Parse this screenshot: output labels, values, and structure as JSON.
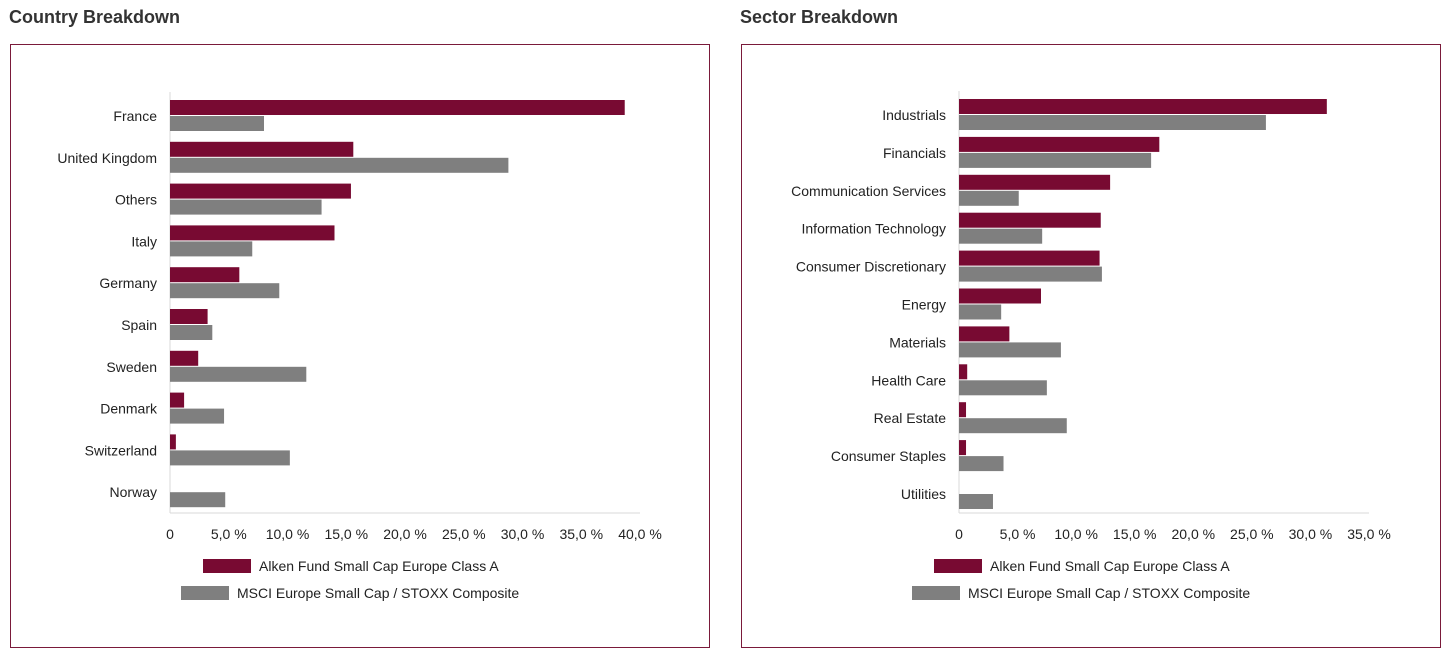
{
  "colors": {
    "fund": "#780a32",
    "benchmark": "#7f7f7f",
    "frame": "#7a1a3a",
    "axis": "#d9d9d9"
  },
  "chart_data": [
    {
      "type": "bar",
      "orientation": "horizontal",
      "title": "Country Breakdown",
      "categories": [
        "France",
        "United Kingdom",
        "Others",
        "Italy",
        "Germany",
        "Spain",
        "Sweden",
        "Denmark",
        "Switzerland",
        "Norway"
      ],
      "series": [
        {
          "name": "Alken Fund Small Cap Europe Class A",
          "values": [
            38.7,
            15.6,
            15.4,
            14.0,
            5.9,
            3.2,
            2.4,
            1.2,
            0.5,
            0.0
          ]
        },
        {
          "name": "MSCI Europe Small Cap / STOXX Composite",
          "values": [
            8.0,
            28.8,
            12.9,
            7.0,
            9.3,
            3.6,
            11.6,
            4.6,
            10.2,
            4.7
          ]
        }
      ],
      "xlim": [
        0,
        40
      ],
      "ticks": [
        "0",
        "5,0 %",
        "10,0 %",
        "15,0 %",
        "20,0 %",
        "25,0 %",
        "30,0 %",
        "35,0 %",
        "40,0 %"
      ],
      "legend_position": "bottom"
    },
    {
      "type": "bar",
      "orientation": "horizontal",
      "title": "Sector Breakdown",
      "categories": [
        "Industrials",
        "Financials",
        "Communication Services",
        "Information Technology",
        "Consumer Discretionary",
        "Energy",
        "Materials",
        "Health Care",
        "Real Estate",
        "Consumer Staples",
        "Utilities"
      ],
      "series": [
        {
          "name": "Alken Fund Small Cap Europe Class A",
          "values": [
            31.4,
            17.1,
            12.9,
            12.1,
            12.0,
            7.0,
            4.3,
            0.7,
            0.6,
            0.6,
            0.0
          ]
        },
        {
          "name": "MSCI Europe Small Cap / STOXX Composite",
          "values": [
            26.2,
            16.4,
            5.1,
            7.1,
            12.2,
            3.6,
            8.7,
            7.5,
            9.2,
            3.8,
            2.9
          ]
        }
      ],
      "xlim": [
        0,
        35
      ],
      "ticks": [
        "0",
        "5,0 %",
        "10,0 %",
        "15,0 %",
        "20,0 %",
        "25,0 %",
        "30,0 %",
        "35,0 %"
      ],
      "legend_position": "bottom"
    }
  ]
}
